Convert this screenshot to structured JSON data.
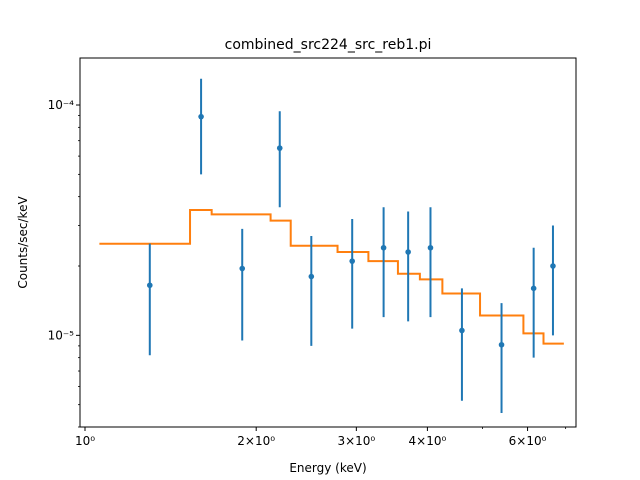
{
  "chart_data": {
    "type": "scatter",
    "title": "combined_src224_src_reb1.pi",
    "xlabel": "Energy (keV)",
    "ylabel": "Counts/sec/keV",
    "xscale": "log",
    "yscale": "log",
    "xlim": [
      0.98,
      7.3
    ],
    "ylim": [
      4e-06,
      0.00016
    ],
    "grid": false,
    "x_ticks": [
      {
        "value": 1,
        "label": "10⁰"
      },
      {
        "value": 2,
        "label": "2×10⁰"
      },
      {
        "value": 3,
        "label": "3×10⁰"
      },
      {
        "value": 4,
        "label": "4×10⁰"
      },
      {
        "value": 6,
        "label": "6×10⁰"
      }
    ],
    "y_ticks": [
      {
        "value": 1e-05,
        "label": "10⁻⁵"
      },
      {
        "value": 0.0001,
        "label": "10⁻⁴"
      }
    ],
    "series": [
      {
        "kind": "data_points",
        "color": "#1f77b4",
        "points": [
          {
            "x": 1.3,
            "y": 1.65e-05,
            "ylo": 8.2e-06,
            "yhi": 2.5e-05
          },
          {
            "x": 1.6,
            "y": 8.9e-05,
            "ylo": 5e-05,
            "yhi": 0.00013
          },
          {
            "x": 1.89,
            "y": 1.95e-05,
            "ylo": 9.5e-06,
            "yhi": 2.9e-05
          },
          {
            "x": 2.2,
            "y": 6.5e-05,
            "ylo": 3.6e-05,
            "yhi": 9.4e-05
          },
          {
            "x": 2.5,
            "y": 1.8e-05,
            "ylo": 9e-06,
            "yhi": 2.7e-05
          },
          {
            "x": 2.95,
            "y": 2.1e-05,
            "ylo": 1.07e-05,
            "yhi": 3.2e-05
          },
          {
            "x": 3.35,
            "y": 2.4e-05,
            "ylo": 1.2e-05,
            "yhi": 3.6e-05
          },
          {
            "x": 3.7,
            "y": 2.3e-05,
            "ylo": 1.15e-05,
            "yhi": 3.45e-05
          },
          {
            "x": 4.05,
            "y": 2.4e-05,
            "ylo": 1.2e-05,
            "yhi": 3.6e-05
          },
          {
            "x": 4.6,
            "y": 1.05e-05,
            "ylo": 5.2e-06,
            "yhi": 1.6e-05
          },
          {
            "x": 5.4,
            "y": 9.1e-06,
            "ylo": 4.6e-06,
            "yhi": 1.38e-05
          },
          {
            "x": 6.15,
            "y": 1.6e-05,
            "ylo": 8e-06,
            "yhi": 2.4e-05
          },
          {
            "x": 6.65,
            "y": 2e-05,
            "ylo": 1e-05,
            "yhi": 3e-05
          }
        ]
      },
      {
        "kind": "model_step",
        "color": "#ff7f0e",
        "bins": [
          {
            "x0": 1.06,
            "x1": 1.53,
            "y": 2.5e-05
          },
          {
            "x0": 1.53,
            "x1": 1.67,
            "y": 3.5e-05
          },
          {
            "x0": 1.67,
            "x1": 2.12,
            "y": 3.35e-05
          },
          {
            "x0": 2.12,
            "x1": 2.3,
            "y": 3.15e-05
          },
          {
            "x0": 2.3,
            "x1": 2.78,
            "y": 2.45e-05
          },
          {
            "x0": 2.78,
            "x1": 3.15,
            "y": 2.3e-05
          },
          {
            "x0": 3.15,
            "x1": 3.55,
            "y": 2.1e-05
          },
          {
            "x0": 3.55,
            "x1": 3.88,
            "y": 1.85e-05
          },
          {
            "x0": 3.88,
            "x1": 4.25,
            "y": 1.75e-05
          },
          {
            "x0": 4.25,
            "x1": 4.95,
            "y": 1.52e-05
          },
          {
            "x0": 4.95,
            "x1": 5.9,
            "y": 1.22e-05
          },
          {
            "x0": 5.9,
            "x1": 6.4,
            "y": 1.02e-05
          },
          {
            "x0": 6.4,
            "x1": 6.95,
            "y": 9.2e-06
          }
        ]
      }
    ]
  }
}
